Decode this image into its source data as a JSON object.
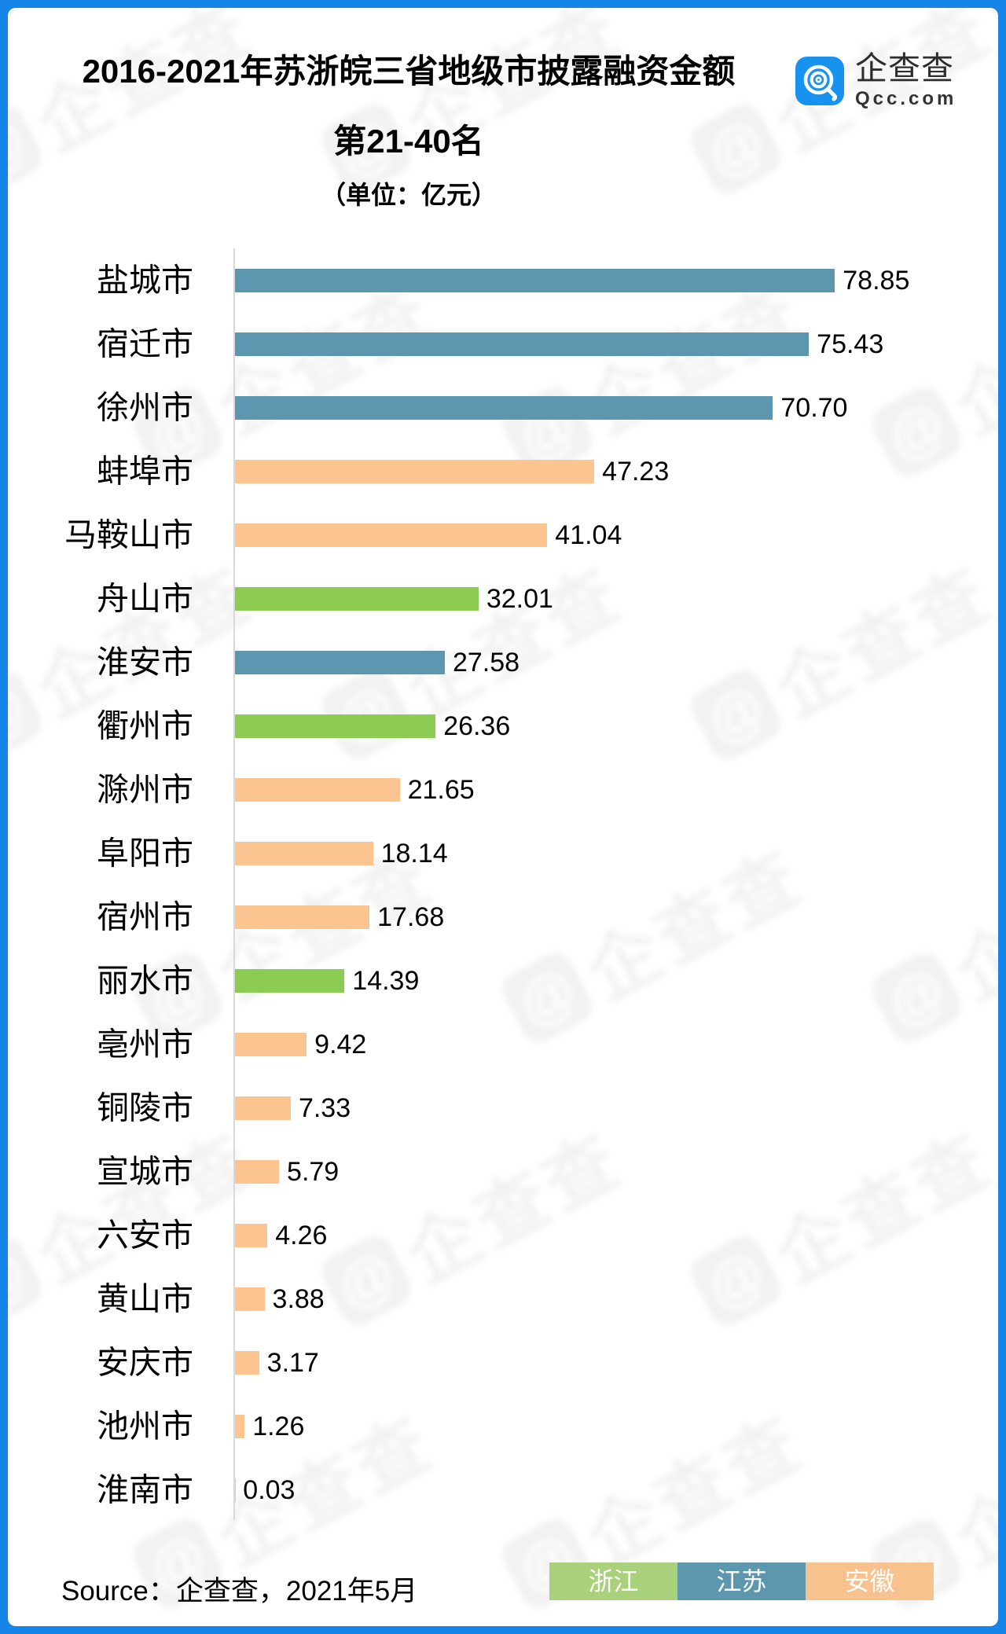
{
  "page": {
    "title_line1": "2016-2021年苏浙皖三省地级市披露融资金额",
    "title_line2": "第21-40名",
    "subtitle": "（单位：亿元）",
    "source": "Source：企查查，2021年5月"
  },
  "logo": {
    "name": "企查查",
    "domain": "Qcc.com",
    "icon": "qcc-q-mark-icon",
    "icon_color": "#1793ef"
  },
  "watermark": {
    "text": "企查查",
    "icon_glyph": "@"
  },
  "colors": {
    "frame_blue": "#1586e8",
    "axis_gray": "#d9d9d9",
    "bar_jiangsu": "#5d97af",
    "bar_anhui": "#fbc491",
    "bar_zhejiang": "#8ccc52"
  },
  "legend": [
    {
      "label": "浙江",
      "color": "#a9d17b"
    },
    {
      "label": "江苏",
      "color": "#5d97ad"
    },
    {
      "label": "安徽",
      "color": "#f8c28e"
    }
  ],
  "chart_data": {
    "type": "bar",
    "orientation": "horizontal",
    "title": "2016-2021年苏浙皖三省地级市披露融资金额 第21-40名",
    "unit": "亿元",
    "xlim": [
      0,
      80
    ],
    "grid": false,
    "legend_position": "bottom-right",
    "categories": [
      "盐城市",
      "宿迁市",
      "徐州市",
      "蚌埠市",
      "马鞍山市",
      "舟山市",
      "淮安市",
      "衢州市",
      "滁州市",
      "阜阳市",
      "宿州市",
      "丽水市",
      "亳州市",
      "铜陵市",
      "宣城市",
      "六安市",
      "黄山市",
      "安庆市",
      "池州市",
      "淮南市"
    ],
    "values": [
      78.85,
      75.43,
      70.7,
      47.23,
      41.04,
      32.01,
      27.58,
      26.36,
      21.65,
      18.14,
      17.68,
      14.39,
      9.42,
      7.33,
      5.79,
      4.26,
      3.88,
      3.17,
      1.26,
      0.03
    ],
    "value_labels": [
      "78.85",
      "75.43",
      "70.70",
      "47.23",
      "41.04",
      "32.01",
      "27.58",
      "26.36",
      "21.65",
      "18.14",
      "17.68",
      "14.39",
      "9.42",
      "7.33",
      "5.79",
      "4.26",
      "3.88",
      "3.17",
      "1.26",
      "0.03"
    ],
    "provinces": [
      "江苏",
      "江苏",
      "江苏",
      "安徽",
      "安徽",
      "浙江",
      "江苏",
      "浙江",
      "安徽",
      "安徽",
      "安徽",
      "浙江",
      "安徽",
      "安徽",
      "安徽",
      "安徽",
      "安徽",
      "安徽",
      "安徽",
      "安徽"
    ],
    "province_colors": {
      "浙江": "#8ccc52",
      "江苏": "#5d97af",
      "安徽": "#fbc491"
    }
  }
}
